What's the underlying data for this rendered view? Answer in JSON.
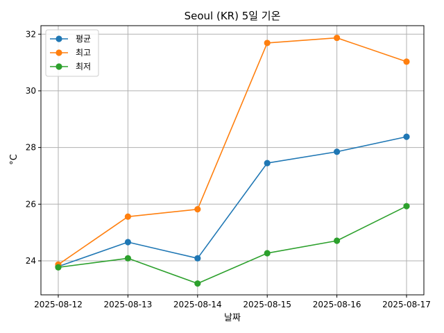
{
  "chart_data": {
    "type": "line",
    "title": "Seoul (KR) 5일 기온",
    "xlabel": "날짜",
    "ylabel": "°C",
    "x": [
      "2025-08-12",
      "2025-08-13",
      "2025-08-14",
      "2025-08-15",
      "2025-08-16",
      "2025-08-17"
    ],
    "ylim": [
      22.8,
      32.3
    ],
    "yticks": [
      24,
      26,
      28,
      30,
      32
    ],
    "grid": true,
    "legend_position": "top-left",
    "series": [
      {
        "name": "평균",
        "color": "#1f77b4",
        "marker": "circle",
        "values": [
          23.8,
          24.66,
          24.09,
          27.45,
          27.85,
          28.38
        ]
      },
      {
        "name": "최고",
        "color": "#ff7f0e",
        "marker": "circle",
        "values": [
          23.87,
          25.56,
          25.82,
          31.69,
          31.87,
          31.03
        ]
      },
      {
        "name": "최저",
        "color": "#2ca02c",
        "marker": "circle",
        "values": [
          23.77,
          24.09,
          23.2,
          24.27,
          24.71,
          25.93
        ]
      }
    ]
  }
}
